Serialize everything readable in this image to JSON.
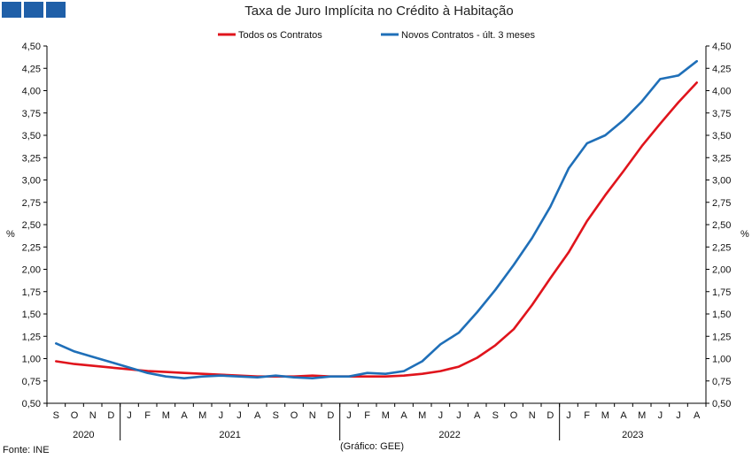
{
  "header": {
    "logo": "logo-squares"
  },
  "chart_data": {
    "type": "line",
    "title": "Taxa de Juro Implícita no Crédito à Habitação",
    "ylabel": "%",
    "ylim": [
      0.5,
      4.5
    ],
    "yticks": [
      "0,50",
      "0,75",
      "1,00",
      "1,25",
      "1,50",
      "1,75",
      "2,00",
      "2,25",
      "2,50",
      "2,75",
      "3,00",
      "3,25",
      "3,50",
      "3,75",
      "4,00",
      "4,25",
      "4,50"
    ],
    "months": [
      "S",
      "O",
      "N",
      "D",
      "J",
      "F",
      "M",
      "A",
      "M",
      "J",
      "J",
      "A",
      "S",
      "O",
      "N",
      "D",
      "J",
      "F",
      "M",
      "A",
      "M",
      "J",
      "J",
      "A",
      "S",
      "O",
      "N",
      "D",
      "J",
      "F",
      "M",
      "A",
      "M",
      "J",
      "J",
      "A"
    ],
    "years": [
      {
        "label": "2020",
        "start": 0,
        "end": 4
      },
      {
        "label": "2021",
        "start": 4,
        "end": 16
      },
      {
        "label": "2022",
        "start": 16,
        "end": 28
      },
      {
        "label": "2023",
        "start": 28,
        "end": 36
      }
    ],
    "legend_position": "top",
    "series": [
      {
        "name": "Todos os Contratos",
        "color": "#e0141c",
        "values": [
          0.97,
          0.94,
          0.92,
          0.9,
          0.88,
          0.86,
          0.85,
          0.84,
          0.83,
          0.82,
          0.81,
          0.8,
          0.8,
          0.8,
          0.81,
          0.8,
          0.8,
          0.8,
          0.8,
          0.81,
          0.83,
          0.86,
          0.91,
          1.01,
          1.15,
          1.33,
          1.6,
          1.9,
          2.19,
          2.54,
          2.83,
          3.1,
          3.38,
          3.63,
          3.87,
          4.09
        ]
      },
      {
        "name": "Novos Contratos - últ. 3 meses",
        "color": "#1f6fb8",
        "values": [
          1.17,
          1.08,
          1.02,
          0.96,
          0.9,
          0.84,
          0.8,
          0.78,
          0.8,
          0.81,
          0.8,
          0.79,
          0.81,
          0.79,
          0.78,
          0.8,
          0.8,
          0.84,
          0.83,
          0.86,
          0.97,
          1.16,
          1.29,
          1.52,
          1.77,
          2.05,
          2.35,
          2.7,
          3.13,
          3.41,
          3.5,
          3.67,
          3.88,
          4.13,
          4.17,
          4.33
        ]
      }
    ],
    "source": "Fonte: INE",
    "credit": "(Gráfico: GEE)"
  }
}
